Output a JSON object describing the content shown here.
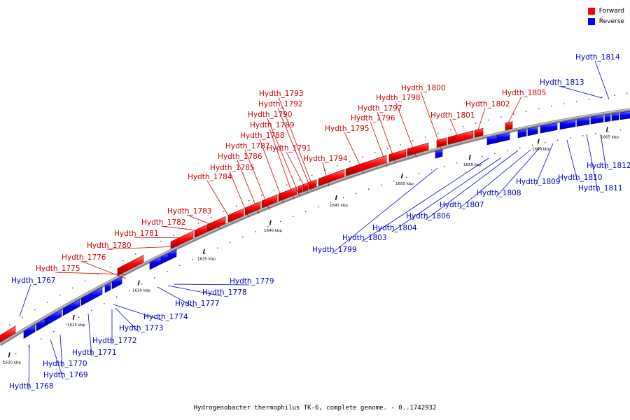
{
  "legend": [
    {
      "label": "Forward",
      "color": "#ff0000"
    },
    {
      "label": "Reverse",
      "color": "#0000ff"
    }
  ],
  "caption": "Hydrogenobacter thermophilus TK-6, complete genome. - 0..1742932",
  "scale_ticks": [
    "1620 kbp",
    "1625 kbp",
    "1630 kbp",
    "1635 kbp",
    "1640 kbp",
    "1645 kbp",
    "1650 kbp",
    "1655 kbp",
    "1660 kbp",
    "1665 kbp"
  ],
  "forward_genes": [
    "Hydth_1775",
    "Hydth_1776",
    "Hydth_1780",
    "Hydth_1781",
    "Hydth_1782",
    "Hydth_1783",
    "Hydth_1784",
    "Hydth_1785",
    "Hydth_1786",
    "Hydth_1787",
    "Hydth_1788",
    "Hydth_1789",
    "Hydth_1790",
    "Hydth_1791",
    "Hydth_1792",
    "Hydth_1793",
    "Hydth_1794",
    "Hydth_1795",
    "Hydth_1796",
    "Hydth_1797",
    "Hydth_1798",
    "Hydth_1800",
    "Hydth_1801",
    "Hydth_1802",
    "Hydth_1805"
  ],
  "reverse_genes": [
    "Hydth_1767",
    "Hydth_1768",
    "Hydth_1769",
    "Hydth_1770",
    "Hydth_1771",
    "Hydth_1772",
    "Hydth_1773",
    "Hydth_1774",
    "Hydth_1777",
    "Hydth_1778",
    "Hydth_1779",
    "Hydth_1799",
    "Hydth_1803",
    "Hydth_1804",
    "Hydth_1806",
    "Hydth_1807",
    "Hydth_1808",
    "Hydth_1809",
    "Hydth_1810",
    "Hydth_1811",
    "Hydth_1812",
    "Hydth_1813",
    "Hydth_1814"
  ]
}
